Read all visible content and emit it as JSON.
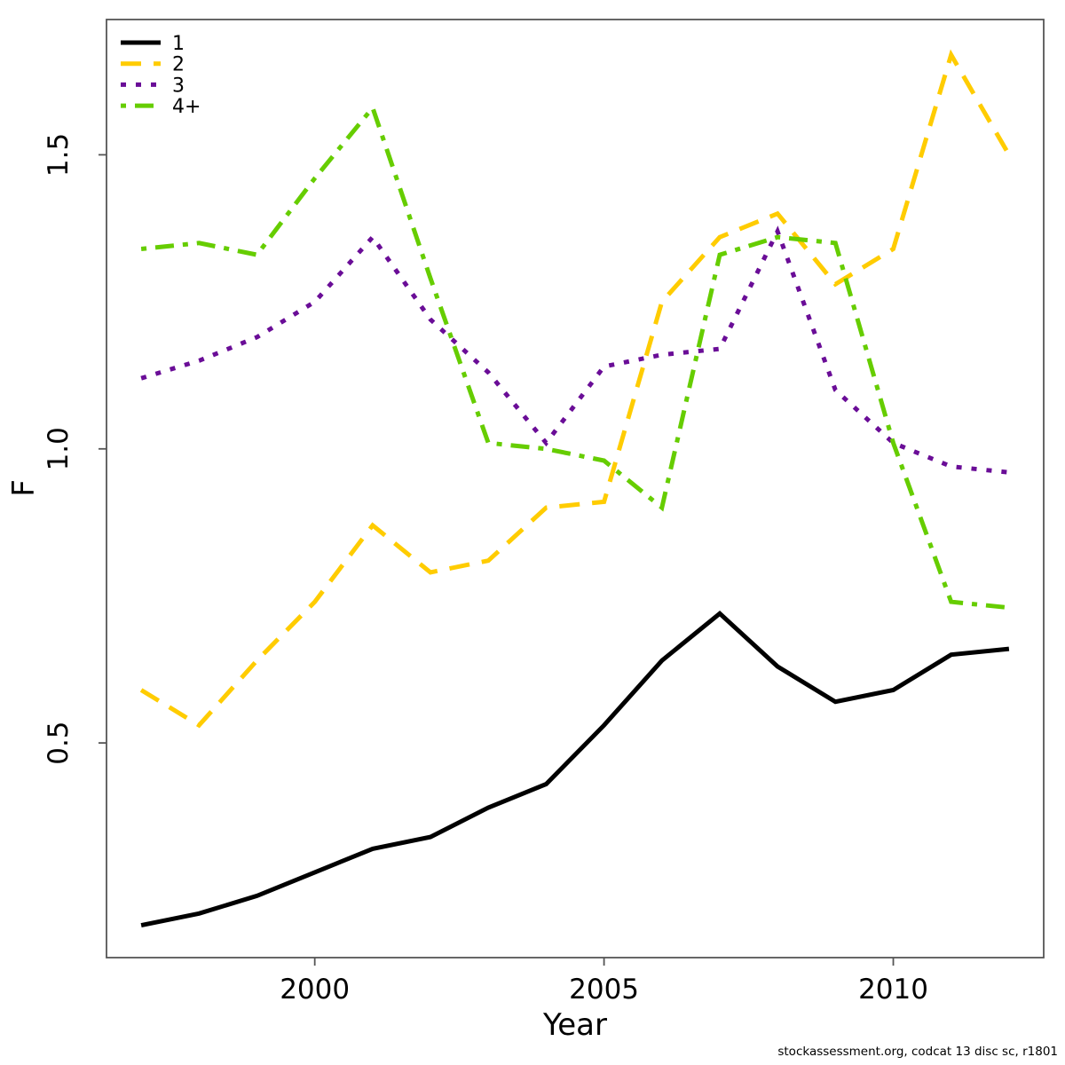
{
  "chart_data": {
    "type": "line",
    "title": "",
    "xlabel": "Year",
    "ylabel": "F",
    "x": [
      1997,
      1998,
      1999,
      2000,
      2001,
      2002,
      2003,
      2004,
      2005,
      2006,
      2007,
      2008,
      2009,
      2010,
      2011,
      2012
    ],
    "series": [
      {
        "name": "1",
        "color": "#000000",
        "dash": "solid",
        "values": [
          0.19,
          0.21,
          0.24,
          0.28,
          0.32,
          0.34,
          0.39,
          0.43,
          0.53,
          0.64,
          0.72,
          0.63,
          0.57,
          0.59,
          0.65,
          0.66
        ]
      },
      {
        "name": "2",
        "color": "#FFCC00",
        "dash": "dashed",
        "values": [
          0.59,
          0.53,
          0.64,
          0.74,
          0.87,
          0.79,
          0.81,
          0.9,
          0.91,
          1.25,
          1.36,
          1.4,
          1.28,
          1.34,
          1.67,
          1.5
        ]
      },
      {
        "name": "3",
        "color": "#6A0D97",
        "dash": "dotted",
        "values": [
          1.12,
          1.15,
          1.19,
          1.25,
          1.36,
          1.22,
          1.13,
          1.01,
          1.14,
          1.16,
          1.17,
          1.37,
          1.1,
          1.01,
          0.97,
          0.96
        ]
      },
      {
        "name": "4+",
        "color": "#66CD00",
        "dash": "dotdash",
        "values": [
          1.34,
          1.35,
          1.33,
          1.46,
          1.58,
          1.29,
          1.01,
          1.0,
          0.98,
          0.9,
          1.33,
          1.36,
          1.35,
          1.01,
          0.74,
          0.73
        ]
      }
    ],
    "xticks": [
      2000,
      2005,
      2010
    ],
    "yticks": [
      "0.5",
      "1.0",
      "1.5"
    ],
    "xlim": [
      1996.4,
      2012.6
    ],
    "ylim": [
      0.135,
      1.73
    ],
    "grid": false,
    "legend_position": "top-left"
  },
  "caption": "stockassessment.org, codcat 13 disc sc, r1801"
}
